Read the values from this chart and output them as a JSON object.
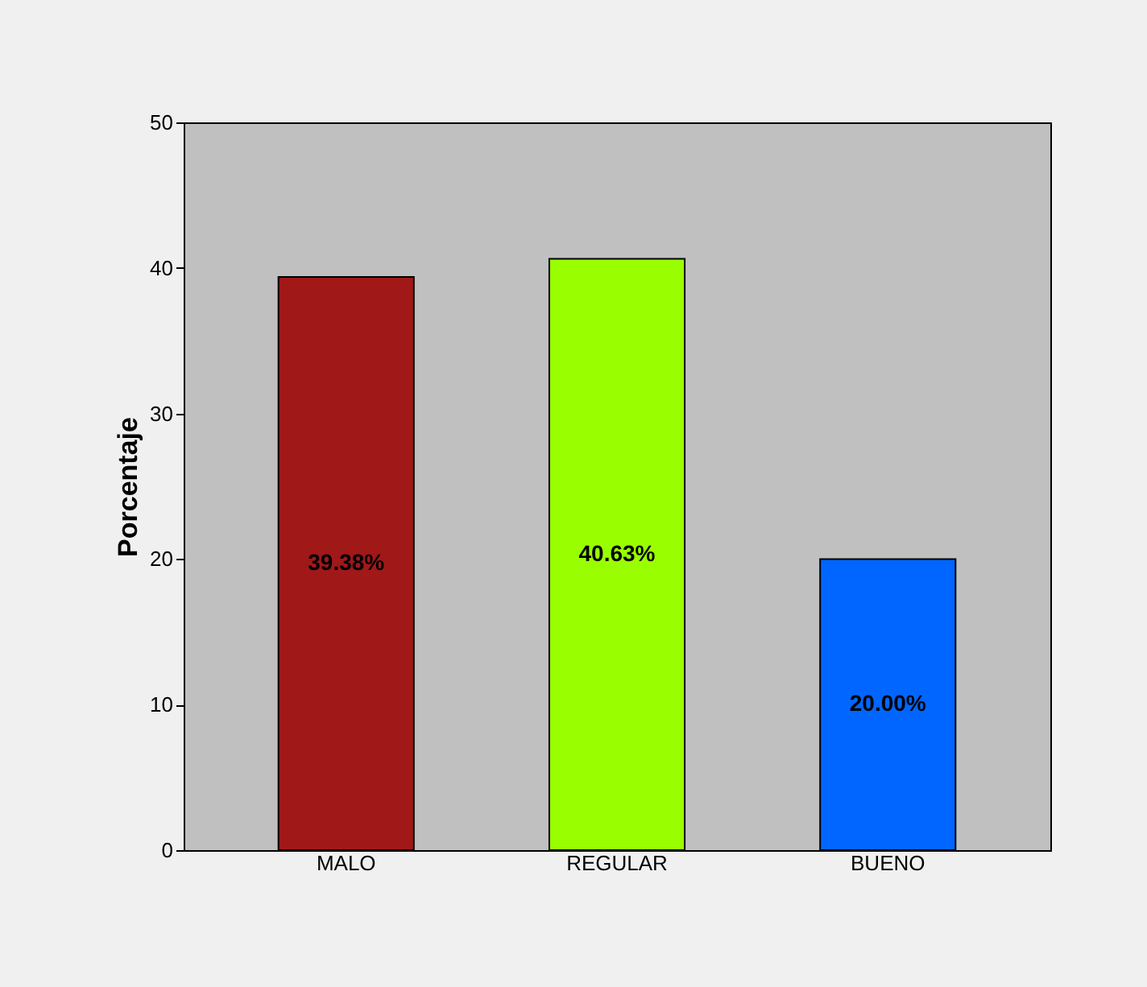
{
  "chart_data": {
    "type": "bar",
    "ylabel": "Porcentaje",
    "categories": [
      "MALO",
      "REGULAR",
      "BUENO"
    ],
    "values": [
      39.38,
      40.63,
      20.0
    ],
    "colors": [
      "#a01818",
      "#99ff00",
      "#0066ff"
    ],
    "value_labels": [
      "39.38%",
      "40.63%",
      "20.00%"
    ],
    "ylim": [
      0,
      50
    ],
    "yticks": [
      0,
      10,
      20,
      30,
      40,
      50
    ],
    "grid": false
  }
}
